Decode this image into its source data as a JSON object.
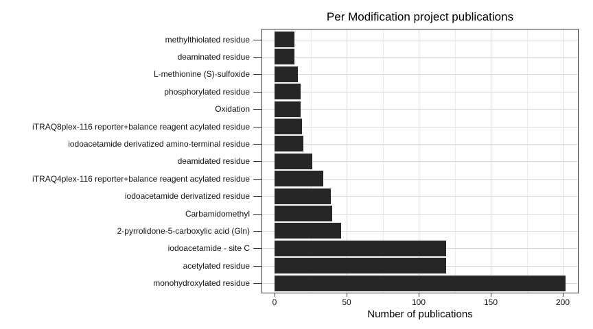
{
  "chart_data": {
    "type": "bar",
    "orientation": "horizontal",
    "title": "Per Modification project publications",
    "xlabel": "Number of publications",
    "ylabel": "",
    "categories": [
      "methylthiolated residue",
      "deaminated residue",
      "L-methionine (S)-sulfoxide",
      "phosphorylated residue",
      "Oxidation",
      "iTRAQ8plex-116 reporter+balance reagent acylated residue",
      "iodoacetamide derivatized amino-terminal residue",
      "deamidated residue",
      "iTRAQ4plex-116 reporter+balance reagent acylated residue",
      "iodoacetamide derivatized residue",
      "Carbamidomethyl",
      "2-pyrrolidone-5-carboxylic acid (Gln)",
      "iodoacetamide - site C",
      "acetylated residue",
      "monohydroxylated residue"
    ],
    "values": [
      14,
      14,
      16,
      18,
      18,
      19,
      20,
      26,
      34,
      39,
      40,
      46,
      119,
      119,
      202
    ],
    "x_ticks": [
      0,
      50,
      100,
      150,
      200
    ],
    "x_minor_gridlines": [
      25,
      75,
      125,
      175
    ],
    "xlim": [
      -9,
      212
    ],
    "grid": true,
    "legend": false,
    "colors": {
      "bar": "#262626",
      "grid_major": "#dcdcdc",
      "grid_minor": "#ececec",
      "panel_border": "#333333",
      "text": "#111111",
      "background": "#ffffff"
    }
  }
}
